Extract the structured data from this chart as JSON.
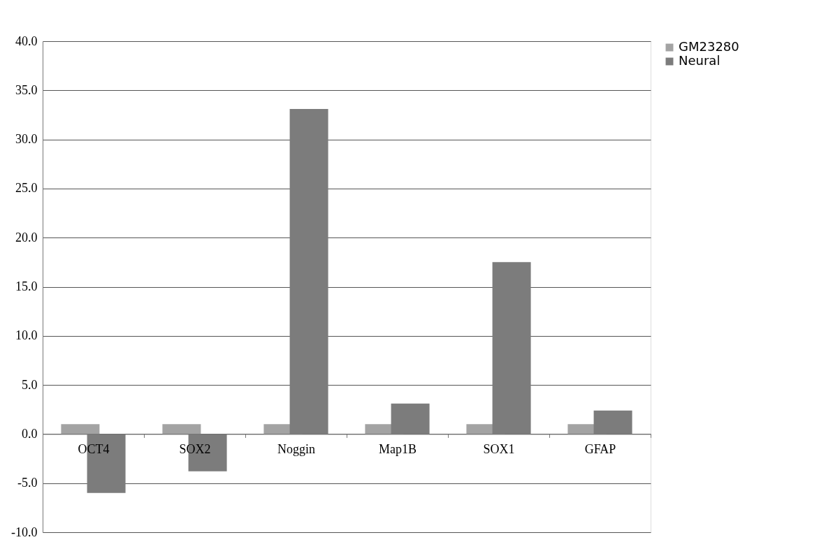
{
  "chart_data": {
    "type": "bar",
    "categories": [
      "OCT4",
      "SOX2",
      "Noggin",
      "Map1B",
      "SOX1",
      "GFAP"
    ],
    "series": [
      {
        "name": "GM23280",
        "color": "#a3a3a3",
        "values": [
          1.0,
          1.0,
          1.0,
          1.0,
          1.0,
          1.0
        ]
      },
      {
        "name": "Neural",
        "color": "#7c7c7c",
        "values": [
          -6.0,
          -3.8,
          33.1,
          3.1,
          17.5,
          2.4
        ]
      }
    ],
    "ylim": [
      -10,
      40
    ],
    "yticks": [
      {
        "value": -10,
        "label": "-10.0"
      },
      {
        "value": -5,
        "label": "-5.0"
      },
      {
        "value": 0,
        "label": "0.0"
      },
      {
        "value": 5,
        "label": "5.0"
      },
      {
        "value": 10,
        "label": "10.0"
      },
      {
        "value": 15,
        "label": "15.0"
      },
      {
        "value": 20,
        "label": "20.0"
      },
      {
        "value": 25,
        "label": "25.0"
      },
      {
        "value": 30,
        "label": "30.0"
      },
      {
        "value": 35,
        "label": "35.0"
      },
      {
        "value": 40,
        "label": "40.0"
      }
    ],
    "grid": "y",
    "legend": "right"
  }
}
